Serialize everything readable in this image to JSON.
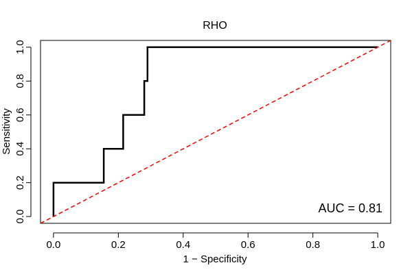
{
  "chart_data": {
    "type": "line",
    "title": "RHO",
    "xlabel": "1 − Specificity",
    "ylabel": "Sensitivity",
    "xlim": [
      -0.04,
      1.04
    ],
    "ylim": [
      -0.04,
      1.04
    ],
    "xticks": [
      0.0,
      0.2,
      0.4,
      0.6,
      0.8,
      1.0
    ],
    "xtick_labels": [
      "0.0",
      "0.2",
      "0.4",
      "0.6",
      "0.8",
      "1.0"
    ],
    "yticks": [
      0.0,
      0.2,
      0.4,
      0.6,
      0.8,
      1.0
    ],
    "ytick_labels": [
      "0.0",
      "0.2",
      "0.4",
      "0.6",
      "0.8",
      "1.0"
    ],
    "series": [
      {
        "name": "ROC",
        "color": "#000000",
        "style": "solid",
        "x": [
          0.0,
          0.0,
          0.155,
          0.155,
          0.215,
          0.215,
          0.28,
          0.28,
          0.29,
          0.29,
          1.0
        ],
        "y": [
          0.0,
          0.2,
          0.2,
          0.4,
          0.4,
          0.6,
          0.6,
          0.8,
          0.8,
          1.0,
          1.0
        ]
      },
      {
        "name": "Reference",
        "color": "#ff0000",
        "style": "dashed",
        "x": [
          -0.04,
          1.04
        ],
        "y": [
          -0.04,
          1.04
        ]
      }
    ],
    "annotation": "AUC = 0.81"
  }
}
